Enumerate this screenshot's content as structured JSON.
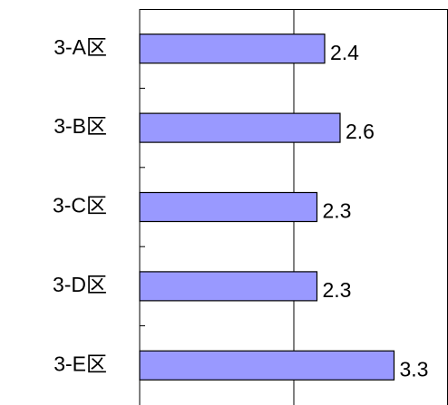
{
  "chart_data": {
    "type": "barh",
    "categories": [
      "3-A区",
      "3-B区",
      "3-C区",
      "3-D区",
      "3-E区"
    ],
    "values": [
      2.4,
      2.6,
      2.3,
      2.3,
      3.3
    ],
    "color": "#9999ff",
    "xlim": [
      0,
      4
    ],
    "xticks": [
      0,
      2,
      4
    ],
    "grid": true
  }
}
